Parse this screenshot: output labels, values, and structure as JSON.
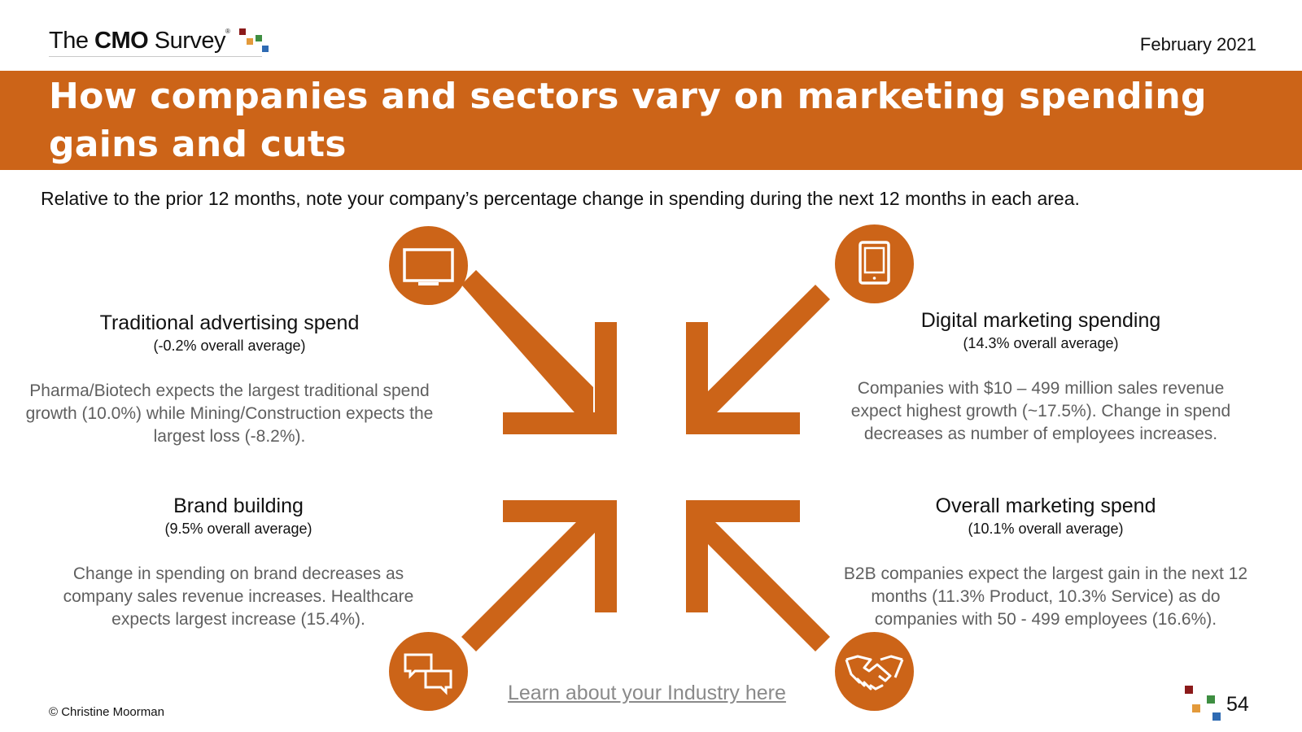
{
  "header": {
    "logo": {
      "prefix": "The",
      "brand": "CMO",
      "suffix": "Survey",
      "registered": "®",
      "square_colors": [
        "#8b1a1a",
        "#e39a3b",
        "#3e8e41",
        "#2f6bb3"
      ]
    },
    "date": "February 2021"
  },
  "banner": {
    "title": "How companies and sectors vary on marketing spending gains and cuts",
    "background_color": "#cc6418"
  },
  "question": "Relative to the prior 12 months, note your company’s percentage change in spending during the next 12 months in each area.",
  "cards": {
    "traditional": {
      "title": "Traditional advertising spend",
      "average": "(-0.2% overall average)",
      "body": "Pharma/Biotech expects the largest traditional spend growth (10.0%) while Mining/Construction expects the largest loss (-8.2%).",
      "icon": "tv-icon"
    },
    "digital": {
      "title": "Digital marketing spending",
      "average": "(14.3% overall average)",
      "body": "Companies with $10 – 499 million sales revenue expect highest growth (~17.5%). Change in spend decreases as number of employees increases.",
      "icon": "tablet-icon"
    },
    "brand": {
      "title": "Brand building",
      "average": "(9.5% overall average)",
      "body": "Change in spending on brand decreases as company sales revenue increases. Healthcare expects largest increase (15.4%).",
      "icon": "speech-bubbles-icon"
    },
    "overall": {
      "title": "Overall marketing spend",
      "average": "(10.1% overall average)",
      "body": "B2B companies expect the largest gain in the next 12 months (11.3% Product, 10.3% Service) as do companies with 50 - 499 employees (16.6%).",
      "icon": "handshake-icon"
    }
  },
  "accent_color": "#cc6418",
  "footer": {
    "link_text": "Learn about your Industry here",
    "copyright": "© Christine Moorman",
    "page_number": "54"
  }
}
